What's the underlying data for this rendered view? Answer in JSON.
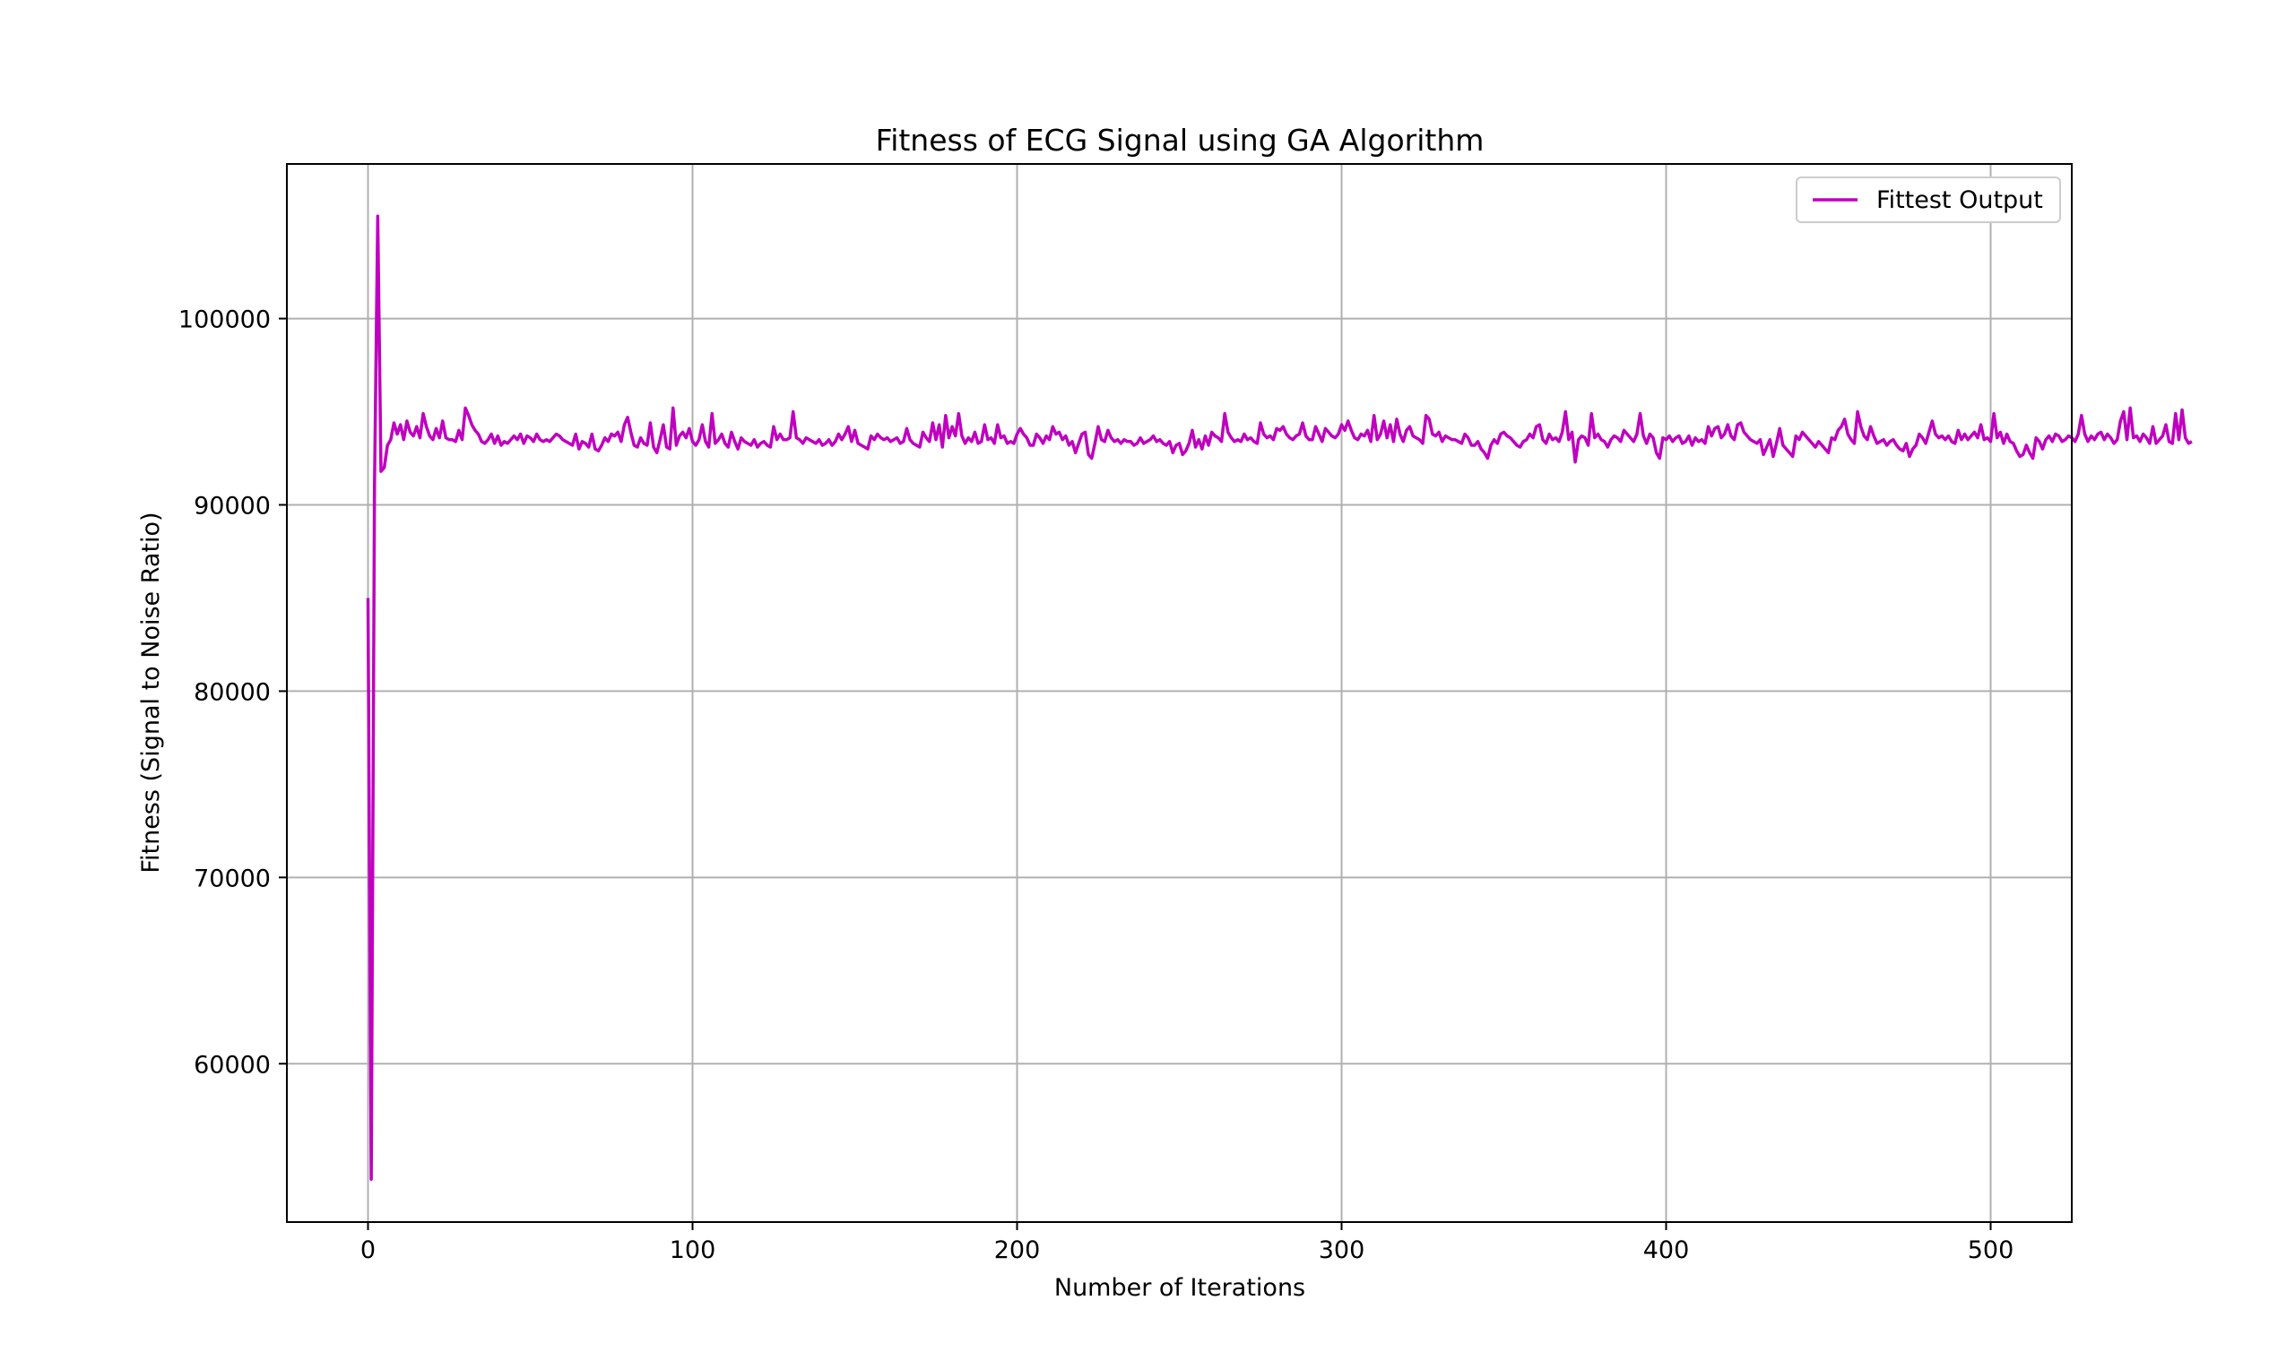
{
  "chart_data": {
    "type": "line",
    "title": "Fitness of ECG Signal using GA Algorithm",
    "xlabel": "Number of Iterations",
    "ylabel": "Fitness (Signal to Noise Ratio)",
    "xlim": [
      -25,
      525
    ],
    "ylim": [
      51500,
      108300
    ],
    "xticks": [
      0,
      100,
      200,
      300,
      400,
      500
    ],
    "xtick_labels": [
      "0",
      "100",
      "200",
      "300",
      "400",
      "500"
    ],
    "yticks": [
      60000,
      70000,
      80000,
      90000,
      100000
    ],
    "ytick_labels": [
      "60000",
      "70000",
      "80000",
      "90000",
      "100000"
    ],
    "grid": true,
    "legend_position": "top-right",
    "series": [
      {
        "name": "Fittest Output",
        "color": "#bf00bf",
        "x_start": 0,
        "x_step": 1,
        "values": [
          85000,
          53800,
          91000,
          105500,
          91800,
          92000,
          93200,
          93500,
          94400,
          93800,
          94300,
          93500,
          94500,
          93900,
          93700,
          94200,
          93600,
          94900,
          94200,
          93700,
          93500,
          94100,
          93600,
          94500,
          93600,
          93500,
          93500,
          93400,
          94000,
          93500,
          95200,
          94800,
          94300,
          94000,
          93800,
          93400,
          93300,
          93500,
          93800,
          93300,
          93700,
          93200,
          93400,
          93300,
          93500,
          93700,
          93500,
          93800,
          93300,
          93700,
          93600,
          93400,
          93800,
          93500,
          93400,
          93500,
          93400,
          93600,
          93800,
          93700,
          93500,
          93400,
          93300,
          93200,
          93800,
          93000,
          93400,
          93300,
          93100,
          93800,
          93000,
          92900,
          93200,
          93600,
          93400,
          93800,
          93700,
          93900,
          93400,
          94300,
          94700,
          93900,
          93200,
          93100,
          93600,
          93300,
          93200,
          94400,
          93100,
          92800,
          93500,
          94300,
          93100,
          93000,
          95200,
          93200,
          93700,
          93900,
          93600,
          94100,
          93400,
          93200,
          93500,
          94300,
          93400,
          93100,
          94900,
          93300,
          93500,
          93800,
          93300,
          93100,
          93900,
          93400,
          93000,
          93600,
          93400,
          93300,
          93200,
          93500,
          93100,
          93300,
          93400,
          93200,
          93100,
          94200,
          93500,
          93800,
          93500,
          93500,
          93600,
          95000,
          93600,
          93500,
          93300,
          93600,
          93500,
          93400,
          93300,
          93500,
          93200,
          93300,
          93500,
          93200,
          93400,
          93800,
          93500,
          93800,
          94200,
          93400,
          94000,
          93300,
          93200,
          93100,
          93000,
          93700,
          93500,
          93800,
          93600,
          93500,
          93600,
          93400,
          93500,
          93600,
          93300,
          93400,
          94100,
          93500,
          93300,
          93200,
          93100,
          93900,
          93600,
          93400,
          94400,
          93500,
          94300,
          93100,
          94800,
          93600,
          94200,
          93700,
          94900,
          93700,
          93300,
          93600,
          93400,
          93900,
          93300,
          93400,
          94300,
          93500,
          93600,
          93300,
          94300,
          93600,
          93700,
          93300,
          93400,
          93300,
          93800,
          94100,
          93800,
          93600,
          93200,
          93200,
          93800,
          93600,
          93300,
          93700,
          93500,
          94200,
          93800,
          93900,
          93500,
          93700,
          93200,
          93400,
          92800,
          93300,
          93800,
          93900,
          92700,
          92500,
          93300,
          94200,
          93500,
          93400,
          94000,
          93600,
          93400,
          93500,
          93300,
          93500,
          93400,
          93400,
          93200,
          93300,
          93600,
          93300,
          93400,
          93500,
          93700,
          93400,
          93500,
          93300,
          93200,
          93400,
          92800,
          93200,
          93300,
          92700,
          92900,
          93300,
          94000,
          93100,
          93500,
          93000,
          93700,
          93200,
          93900,
          93700,
          93600,
          93400,
          94900,
          93900,
          93600,
          93400,
          93500,
          93400,
          93800,
          93500,
          93600,
          93400,
          93300,
          94400,
          93800,
          93600,
          93700,
          93500,
          94100,
          94000,
          94200,
          93800,
          93600,
          93500,
          93700,
          93800,
          94400,
          93700,
          93500,
          93500,
          94200,
          93800,
          93400,
          94100,
          93900,
          93700,
          93600,
          93800,
          94300,
          94000,
          94500,
          94000,
          93600,
          93500,
          93800,
          93700,
          94000,
          93400,
          94800,
          93500,
          93800,
          94500,
          93600,
          94300,
          93400,
          94600,
          93800,
          93400,
          94000,
          94200,
          93700,
          93600,
          93500,
          93300,
          94800,
          94600,
          93800,
          93700,
          93900,
          93400,
          93700,
          93600,
          93500,
          93500,
          93400,
          93300,
          93800,
          93600,
          93200,
          93200,
          93400,
          93000,
          92800,
          92500,
          93200,
          93500,
          93300,
          93800,
          93900,
          93700,
          93600,
          93400,
          93200,
          93100,
          93400,
          93500,
          93800,
          93600,
          94200,
          94300,
          93500,
          93300,
          93800,
          93500,
          93600,
          93400,
          93900,
          95000,
          93500,
          93900,
          92300,
          93500,
          93700,
          93600,
          93200,
          94900,
          93600,
          93800,
          93500,
          93400,
          93100,
          93500,
          93700,
          93600,
          93400,
          94000,
          93800,
          93600,
          93400,
          93800,
          94900,
          93700,
          93300,
          93800,
          93600,
          92800,
          92500,
          93600,
          93500,
          93700,
          93400,
          93600,
          93700,
          93300,
          93400,
          93700,
          93200,
          93600,
          93400,
          93500,
          93300,
          94200,
          93700,
          94100,
          94200,
          93600,
          93800,
          94300,
          93700,
          93500,
          94300,
          94400,
          93900,
          93700,
          93500,
          93400,
          93300,
          93500,
          92700,
          93100,
          93500,
          92600,
          93300,
          94100,
          93200,
          93000,
          92800,
          92600,
          93700,
          93500,
          93900,
          93700,
          93500,
          93300,
          93100,
          93400,
          93200,
          93000,
          92800,
          93600,
          93500,
          94000,
          94200,
          94600,
          93800,
          93500,
          93300,
          95000,
          94200,
          93700,
          93500,
          94200,
          93700,
          93300,
          93400,
          93500,
          93200,
          93400,
          93500,
          93200,
          93000,
          92900,
          93300,
          92600,
          93000,
          93200,
          93800,
          93600,
          93300,
          93900,
          94500,
          93800,
          93600,
          93700,
          93500,
          93700,
          93400,
          93300,
          94000,
          93500,
          93800,
          93500,
          93700,
          93900,
          93600,
          94300,
          93500,
          93600,
          93400,
          94900,
          93600,
          93900,
          93300,
          93800,
          93400,
          93300,
          92900,
          92600,
          92700,
          93200,
          92800,
          92500,
          93600,
          93400,
          93000,
          93500,
          93700,
          93400,
          93800,
          93700,
          93400,
          93500,
          93700,
          93600,
          93400,
          93800,
          94800,
          93800,
          93400,
          93700,
          93500,
          93800,
          93900,
          93500,
          93800,
          93600,
          93300,
          93500,
          94500,
          95000,
          93500,
          95200,
          93600,
          93700,
          93400,
          93800,
          93600,
          93300,
          94200,
          93300,
          93500,
          93700,
          94300,
          93400,
          93300,
          94900,
          93500,
          95100,
          93600,
          93300,
          93400
        ]
      }
    ]
  }
}
